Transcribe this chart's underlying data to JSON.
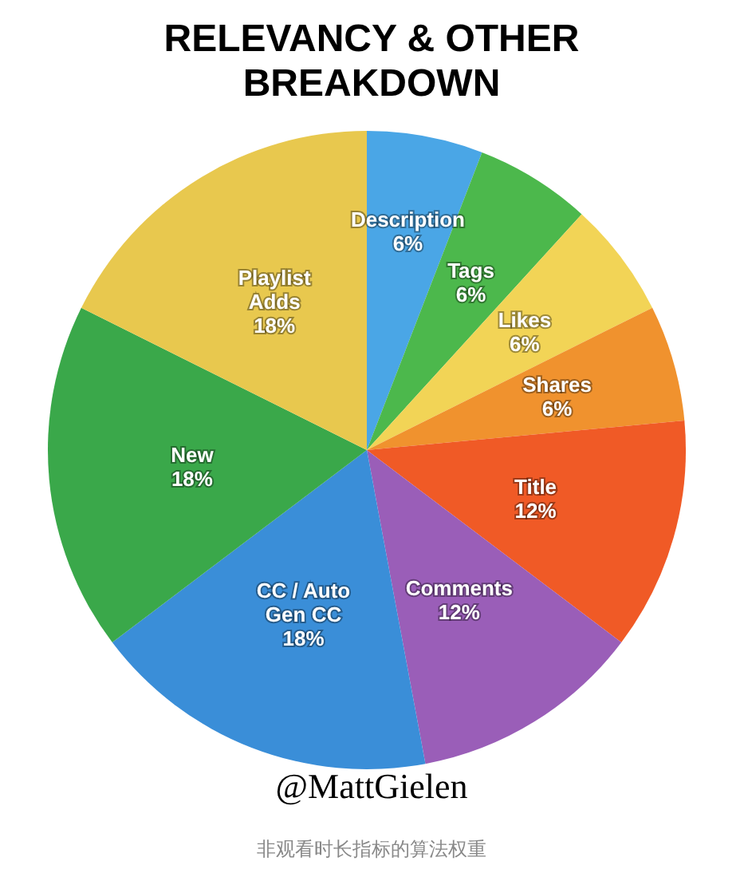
{
  "chart_data": {
    "type": "pie",
    "title": "RELEVANCY & OTHER BREAKDOWN",
    "categories": [
      "Description",
      "Tags",
      "Likes",
      "Shares",
      "Title",
      "Comments",
      "CC / Auto Gen CC",
      "New",
      "Playlist Adds"
    ],
    "values": [
      6,
      6,
      6,
      6,
      12,
      12,
      18,
      18,
      18
    ],
    "value_labels": [
      "6%",
      "6%",
      "6%",
      "6%",
      "12%",
      "12%",
      "18%",
      "18%",
      "18%"
    ],
    "colors": [
      "#4aa6e6",
      "#4cb84c",
      "#f2d456",
      "#f0922e",
      "#f05a26",
      "#9a5eb8",
      "#3a8ed8",
      "#3aa84a",
      "#e8c84e"
    ],
    "legend": false,
    "annotations": [
      "@MattGielen",
      "非观看时长指标的算法权重"
    ]
  }
}
